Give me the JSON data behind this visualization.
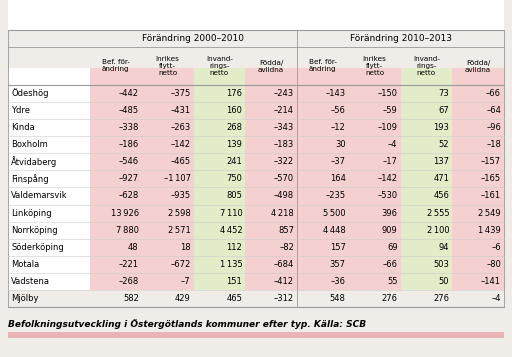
{
  "header1": "Förändring 2000–2010",
  "header2": "Förändring 2010–2013",
  "col_headers": [
    "Bef. för-\nändring",
    "Inrikes\nflytt-\nnetto",
    "Invand-\nrings-\nnetto",
    "Födda/\navlidna",
    "Bef. för-\nändring",
    "Inrikes\nflytt-\nnetto",
    "Invand-\nrings-\nnetto",
    "Födda/\navlidna"
  ],
  "row_labels": [
    "Ödeshög",
    "Ydre",
    "Kinda",
    "Boxholm",
    "Åtvidaberg",
    "Finspång",
    "Valdemarsvik",
    "Linköping",
    "Norrköping",
    "Söderköping",
    "Motala",
    "Vadstena",
    "Mjölby"
  ],
  "data": [
    [
      -442,
      -375,
      176,
      -243,
      -143,
      -150,
      73,
      -66
    ],
    [
      -485,
      -431,
      160,
      -214,
      -56,
      -59,
      67,
      -64
    ],
    [
      -338,
      -263,
      268,
      -343,
      -12,
      -109,
      193,
      -96
    ],
    [
      -186,
      -142,
      139,
      -183,
      30,
      -4,
      52,
      -18
    ],
    [
      -546,
      -465,
      241,
      -322,
      -37,
      -17,
      137,
      -157
    ],
    [
      -927,
      -1107,
      750,
      -570,
      164,
      -142,
      471,
      -165
    ],
    [
      -628,
      -935,
      805,
      -498,
      -235,
      -530,
      456,
      -161
    ],
    [
      13926,
      2598,
      7110,
      4218,
      5500,
      396,
      2555,
      2549
    ],
    [
      7880,
      2571,
      4452,
      857,
      4448,
      909,
      2100,
      1439
    ],
    [
      48,
      18,
      112,
      -82,
      157,
      69,
      94,
      -6
    ],
    [
      -221,
      -672,
      1135,
      -684,
      357,
      -66,
      503,
      -80
    ],
    [
      -268,
      -7,
      151,
      -412,
      -36,
      55,
      50,
      -141
    ],
    [
      582,
      429,
      465,
      -312,
      548,
      276,
      276,
      -4
    ]
  ],
  "caption": "Befolkningsutveckling i Östergötlands kommuner efter typ. Källa: SCB",
  "color_pink": "#f5d0d0",
  "color_green": "#e2ecc8",
  "color_white": "#ffffff",
  "top_stripe_color": "#e8b4b8",
  "bg_color": "#f0ede8",
  "border_color": "#999999",
  "light_border_color": "#cccccc"
}
